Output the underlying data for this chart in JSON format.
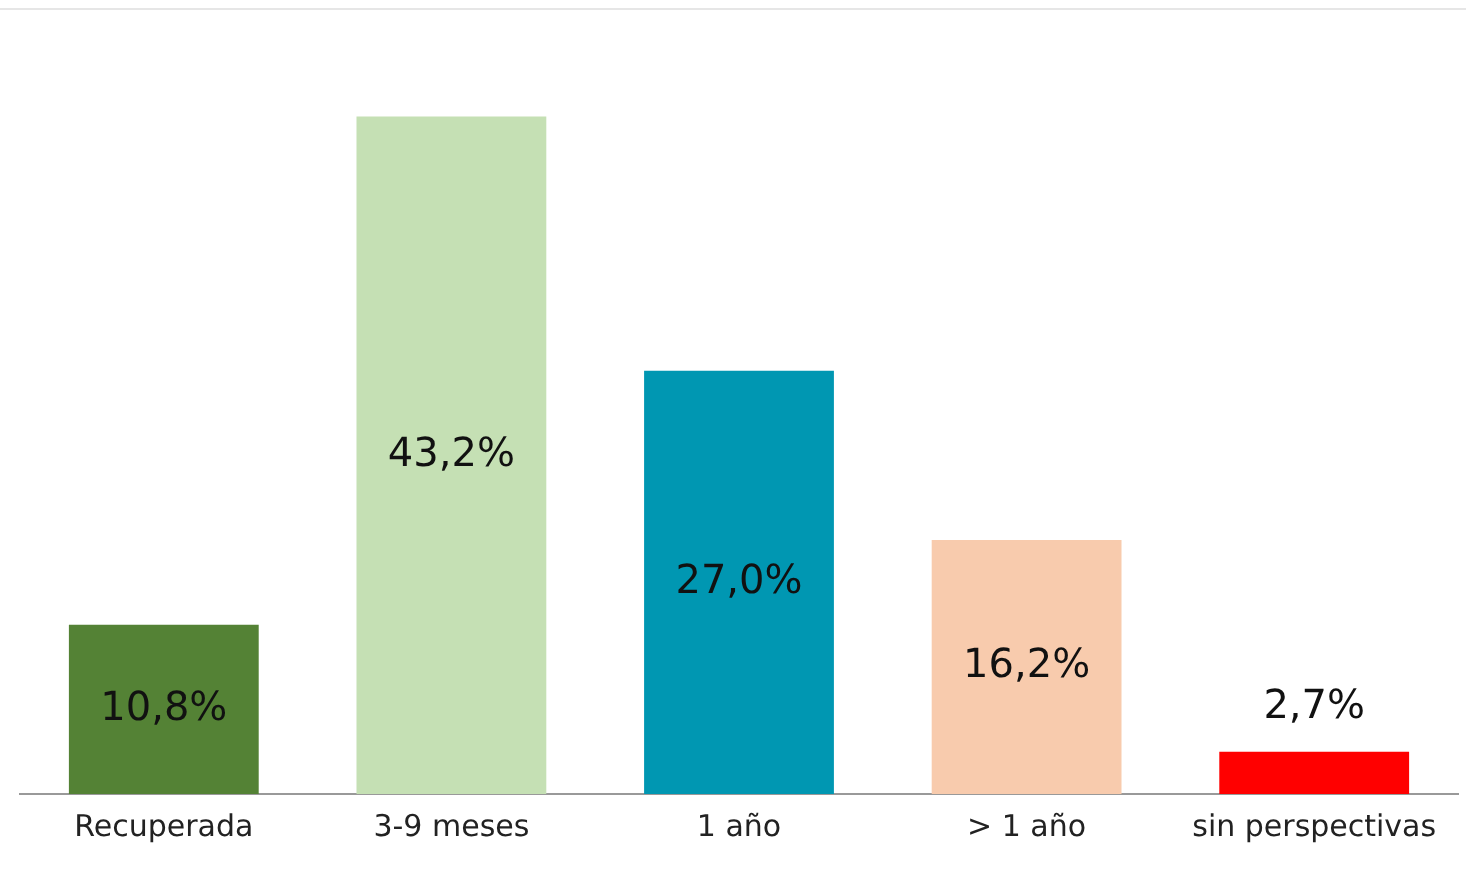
{
  "chart_data": {
    "type": "bar",
    "categories": [
      "Recuperada",
      "3-9 meses",
      "1 año",
      "> 1 año",
      "sin perspectivas"
    ],
    "values": [
      10.8,
      43.2,
      27.0,
      16.2,
      2.7
    ],
    "colors": [
      "#548235",
      "#c5e0b4",
      "#0097b2",
      "#f8cbad",
      "#ff0000"
    ],
    "value_labels": [
      "10,8%",
      "43,2%",
      "27,0%",
      "16,2%",
      "2,7%"
    ],
    "ylim": [
      0,
      50
    ],
    "grid": false,
    "legend": false
  }
}
